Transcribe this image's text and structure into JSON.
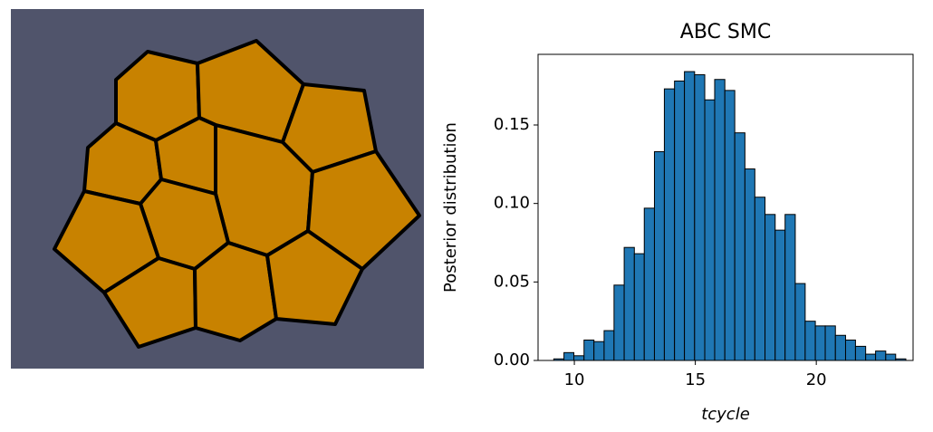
{
  "chart_data": {
    "type": "histogram",
    "title": "ABC SMC",
    "x_label": "tcycle",
    "y_label": "Posterior distribution",
    "bins": [
      9.15,
      9.57,
      9.98,
      10.4,
      10.81,
      11.23,
      11.64,
      12.06,
      12.48,
      12.89,
      13.31,
      13.72,
      14.14,
      14.55,
      14.97,
      15.39,
      15.8,
      16.22,
      16.63,
      17.05,
      17.46,
      17.88,
      18.3,
      18.71,
      19.13,
      19.54,
      19.96,
      20.37,
      20.79,
      21.21,
      21.62,
      22.04,
      22.45,
      22.87,
      23.28,
      23.7
    ],
    "values": [
      0.001,
      0.005,
      0.003,
      0.013,
      0.012,
      0.019,
      0.048,
      0.072,
      0.068,
      0.097,
      0.133,
      0.173,
      0.178,
      0.184,
      0.182,
      0.166,
      0.179,
      0.172,
      0.145,
      0.122,
      0.104,
      0.093,
      0.083,
      0.093,
      0.049,
      0.025,
      0.022,
      0.022,
      0.016,
      0.013,
      0.009,
      0.004,
      0.006,
      0.004,
      0.001
    ],
    "color": "#1f77b4",
    "xlim": [
      8.5,
      24.0
    ],
    "xticks": [
      10,
      15,
      20
    ],
    "ylim": [
      0,
      0.195
    ],
    "yticks": [
      {
        "value": 0,
        "label": "0.00"
      },
      {
        "value": 0.05,
        "label": "0.05"
      },
      {
        "value": 0.1,
        "label": "0.10"
      },
      {
        "value": 0.15,
        "label": "0.15"
      }
    ]
  }
}
